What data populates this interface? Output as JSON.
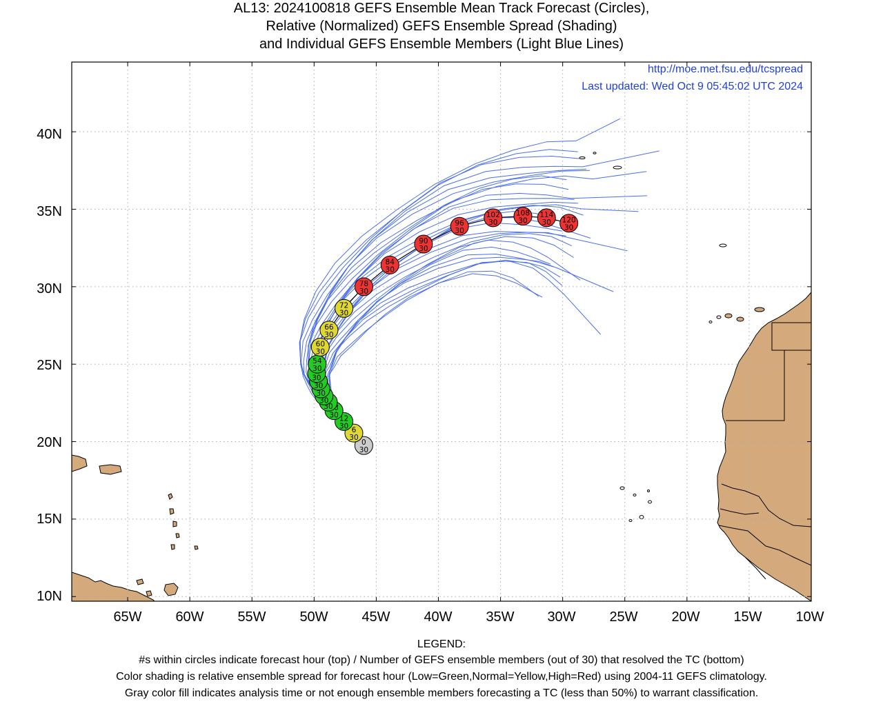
{
  "title": {
    "line1": "AL13: 2024100818 GEFS Ensemble Mean Track Forecast (Circles),",
    "line2": "Relative (Normalized) GEFS Ensemble Spread (Shading)",
    "line3": "and Individual GEFS Ensemble Members (Light Blue Lines)"
  },
  "info": {
    "url": "http://moe.met.fsu.edu/tcspread",
    "updated": "Last updated: Wed Oct 9 05:45:02 UTC 2024"
  },
  "axes": {
    "lat_labels": [
      "10N",
      "15N",
      "20N",
      "25N",
      "30N",
      "35N",
      "40N"
    ],
    "lat_values": [
      10,
      15,
      20,
      25,
      30,
      35,
      40
    ],
    "lon_labels": [
      "65W",
      "60W",
      "55W",
      "50W",
      "45W",
      "40W",
      "35W",
      "30W",
      "25W",
      "20W",
      "15W",
      "10W"
    ],
    "lon_values": [
      -65,
      -60,
      -55,
      -50,
      -45,
      -40,
      -35,
      -30,
      -25,
      -20,
      -15,
      -10
    ],
    "lon_range": [
      -69.5,
      -10
    ],
    "lat_range": [
      9.7,
      44.5
    ],
    "grid": true
  },
  "colors": {
    "land": "#d4a97c",
    "member_lines": "#4a6ee8",
    "mean_track": "#000000",
    "low_spread": "#22cc22",
    "normal_spread": "#e0d832",
    "high_spread": "#ee3333",
    "analysis": "#cccccc",
    "link_text": "#1f3fd6"
  },
  "mean_track": [
    {
      "hour": "0",
      "members": "30",
      "lon": -46.0,
      "lat": 19.75,
      "spread": "analysis"
    },
    {
      "hour": "6",
      "members": "30",
      "lon": -46.8,
      "lat": 20.55,
      "spread": "normal"
    },
    {
      "hour": "12",
      "members": "30",
      "lon": -47.6,
      "lat": 21.3,
      "spread": "low"
    },
    {
      "hour": "18",
      "members": "30",
      "lon": -48.4,
      "lat": 22.0,
      "spread": "low"
    },
    {
      "hour": "24",
      "members": "30",
      "lon": -48.85,
      "lat": 22.55,
      "spread": "low"
    },
    {
      "hour": "30",
      "members": "30",
      "lon": -49.2,
      "lat": 22.95,
      "spread": "low"
    },
    {
      "hour": "36",
      "members": "30",
      "lon": -49.45,
      "lat": 23.4,
      "spread": "low"
    },
    {
      "hour": "42",
      "members": "30",
      "lon": -49.65,
      "lat": 23.9,
      "spread": "low"
    },
    {
      "hour": "48",
      "members": "30",
      "lon": -49.8,
      "lat": 24.4,
      "spread": "low"
    },
    {
      "hour": "54",
      "members": "30",
      "lon": -49.75,
      "lat": 25.0,
      "spread": "low"
    },
    {
      "hour": "60",
      "members": "30",
      "lon": -49.5,
      "lat": 26.1,
      "spread": "normal"
    },
    {
      "hour": "66",
      "members": "30",
      "lon": -48.8,
      "lat": 27.2,
      "spread": "normal"
    },
    {
      "hour": "72",
      "members": "30",
      "lon": -47.6,
      "lat": 28.6,
      "spread": "normal"
    },
    {
      "hour": "78",
      "members": "30",
      "lon": -46.0,
      "lat": 30.0,
      "spread": "high"
    },
    {
      "hour": "84",
      "members": "30",
      "lon": -43.9,
      "lat": 31.4,
      "spread": "high"
    },
    {
      "hour": "90",
      "members": "30",
      "lon": -41.2,
      "lat": 32.75,
      "spread": "high"
    },
    {
      "hour": "96",
      "members": "30",
      "lon": -38.3,
      "lat": 33.9,
      "spread": "high"
    },
    {
      "hour": "102",
      "members": "30",
      "lon": -35.6,
      "lat": 34.45,
      "spread": "high"
    },
    {
      "hour": "108",
      "members": "30",
      "lon": -33.2,
      "lat": 34.55,
      "spread": "high"
    },
    {
      "hour": "114",
      "members": "30",
      "lon": -31.3,
      "lat": 34.45,
      "spread": "high"
    },
    {
      "hour": "120",
      "members": "30",
      "lon": -29.5,
      "lat": 34.1,
      "spread": "high"
    }
  ],
  "legend": {
    "heading": "LEGEND:",
    "line1": "#s within circles indicate forecast hour (top) / Number of GEFS ensemble members (out of 30) that resolved the TC (bottom)",
    "line2": "Color shading is relative ensemble spread for forecast hour (Low=Green,Normal=Yellow,High=Red) using 2004-11 GEFS climatology.",
    "line3": "Gray color fill indicates analysis time or not enough ensemble members forecasting a TC (less than 50%) to warrant classification."
  }
}
